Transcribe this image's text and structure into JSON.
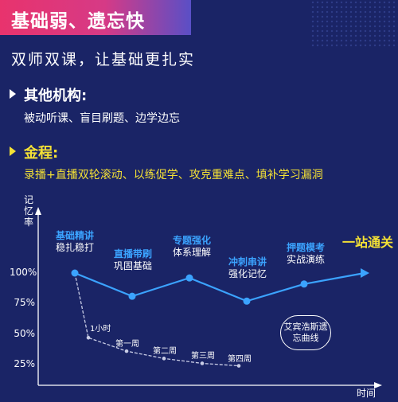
{
  "title": "基础弱、遗忘快",
  "subtitle": "双师双课，让基础更扎实",
  "others": {
    "heading": "其他机构:",
    "body": "被动听课、盲目刷题、边学边忘"
  },
  "jincheng": {
    "heading": "金程:",
    "body": "录播+直播双轮滚动、以练促学、攻克重难点、填补学习漏洞"
  },
  "colors": {
    "background": "#1a2466",
    "accent_yellow": "#f4e135",
    "accent_blue": "#3ba3ff",
    "title_gradient": [
      "#e8336d",
      "#5a4fc6"
    ]
  },
  "chart_data": {
    "type": "line",
    "ylabel": "记忆率",
    "xlabel": "时间",
    "yticks": [
      "100%",
      "75%",
      "50%",
      "25%"
    ],
    "ylim": [
      0,
      100
    ],
    "stages": [
      {
        "name": "基础精讲",
        "detail": "稳扎稳打",
        "value": 100
      },
      {
        "name": "直播带刷",
        "detail": "巩固基础",
        "value": 81
      },
      {
        "name": "专题强化",
        "detail": "体系理解",
        "value": 96
      },
      {
        "name": "冲刺串讲",
        "detail": "强化记忆",
        "value": 77
      },
      {
        "name": "押题模考",
        "detail": "实战演练",
        "value": 91
      },
      {
        "name": "",
        "detail": "",
        "value": 100
      }
    ],
    "final_label": "一站通关",
    "forgetting_curve": {
      "label": "艾宾浩斯遗忘曲线",
      "points": [
        {
          "label": "",
          "value": 100
        },
        {
          "label": "1小时",
          "value": 47
        },
        {
          "label": "第一周",
          "value": 36
        },
        {
          "label": "第二周",
          "value": 30
        },
        {
          "label": "第三周",
          "value": 26
        },
        {
          "label": "第四周",
          "value": 24
        }
      ]
    }
  }
}
